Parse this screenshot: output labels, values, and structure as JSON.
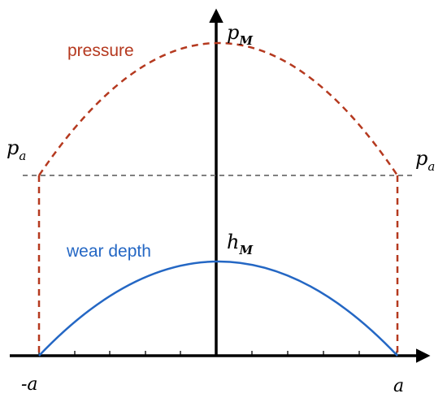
{
  "diagram": {
    "curves": {
      "pressure": {
        "label": "pressure",
        "color": "#b5391f"
      },
      "wear_depth": {
        "label": "wear depth",
        "color": "#2467c4"
      },
      "reference_line": {
        "color": "#808080"
      }
    },
    "labels": {
      "p_M_base": "p",
      "p_M_sub": "M",
      "h_M_base": "h",
      "h_M_sub": "M",
      "p_a_base": "p",
      "p_a_sub": "a",
      "x_neg": "-a",
      "x_pos": "a"
    },
    "axis_color": "#000000"
  }
}
